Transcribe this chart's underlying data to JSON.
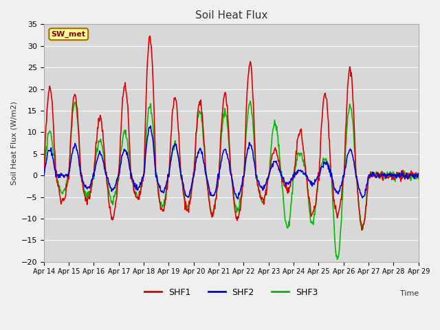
{
  "title": "Soil Heat Flux",
  "ylabel": "Soil Heat Flux (W/m2)",
  "xlabel": "Time",
  "ylim": [
    -20,
    35
  ],
  "yticks": [
    -20,
    -15,
    -10,
    -5,
    0,
    5,
    10,
    15,
    20,
    25,
    30,
    35
  ],
  "xtick_labels": [
    "Apr 14",
    "Apr 15",
    "Apr 16",
    "Apr 17",
    "Apr 18",
    "Apr 19",
    "Apr 20",
    "Apr 21",
    "Apr 22",
    "Apr 23",
    "Apr 24",
    "Apr 25",
    "Apr 26",
    "Apr 27",
    "Apr 28",
    "Apr 29"
  ],
  "bg_color": "#f0f0f0",
  "plot_bg_color": "#d8d8d8",
  "grid_color": "#ffffff",
  "line_colors": {
    "SHF1": "#dd0000",
    "SHF2": "#0000dd",
    "SHF3": "#00bb00"
  },
  "linewidth": 1.2,
  "annotation_text": "SW_met",
  "annotation_bg": "#ffff99",
  "annotation_border": "#aa6600",
  "n_days": 15,
  "points_per_day": 48,
  "shf1_peaks": [
    20,
    -6,
    19,
    -6,
    13,
    -10,
    21,
    -5,
    32,
    -8,
    18,
    -8,
    17,
    -9,
    19,
    -10,
    26,
    -6,
    6,
    -3,
    10,
    -9,
    19,
    -9,
    25,
    -12
  ],
  "shf2_peaks": [
    6,
    0,
    7,
    -3,
    5,
    -3,
    6,
    -3,
    11,
    -4,
    7,
    -5,
    6,
    -5,
    6,
    -5,
    7,
    -3,
    3,
    -2,
    1,
    -2,
    3,
    -4,
    6,
    -5
  ],
  "shf3_peaks": [
    10,
    -4,
    17,
    -5,
    8,
    -6,
    10,
    -5,
    16,
    -7,
    7,
    -7,
    15,
    -9,
    15,
    -8,
    17,
    -6,
    12,
    -12,
    5,
    -11,
    4,
    -19,
    16,
    -12
  ]
}
